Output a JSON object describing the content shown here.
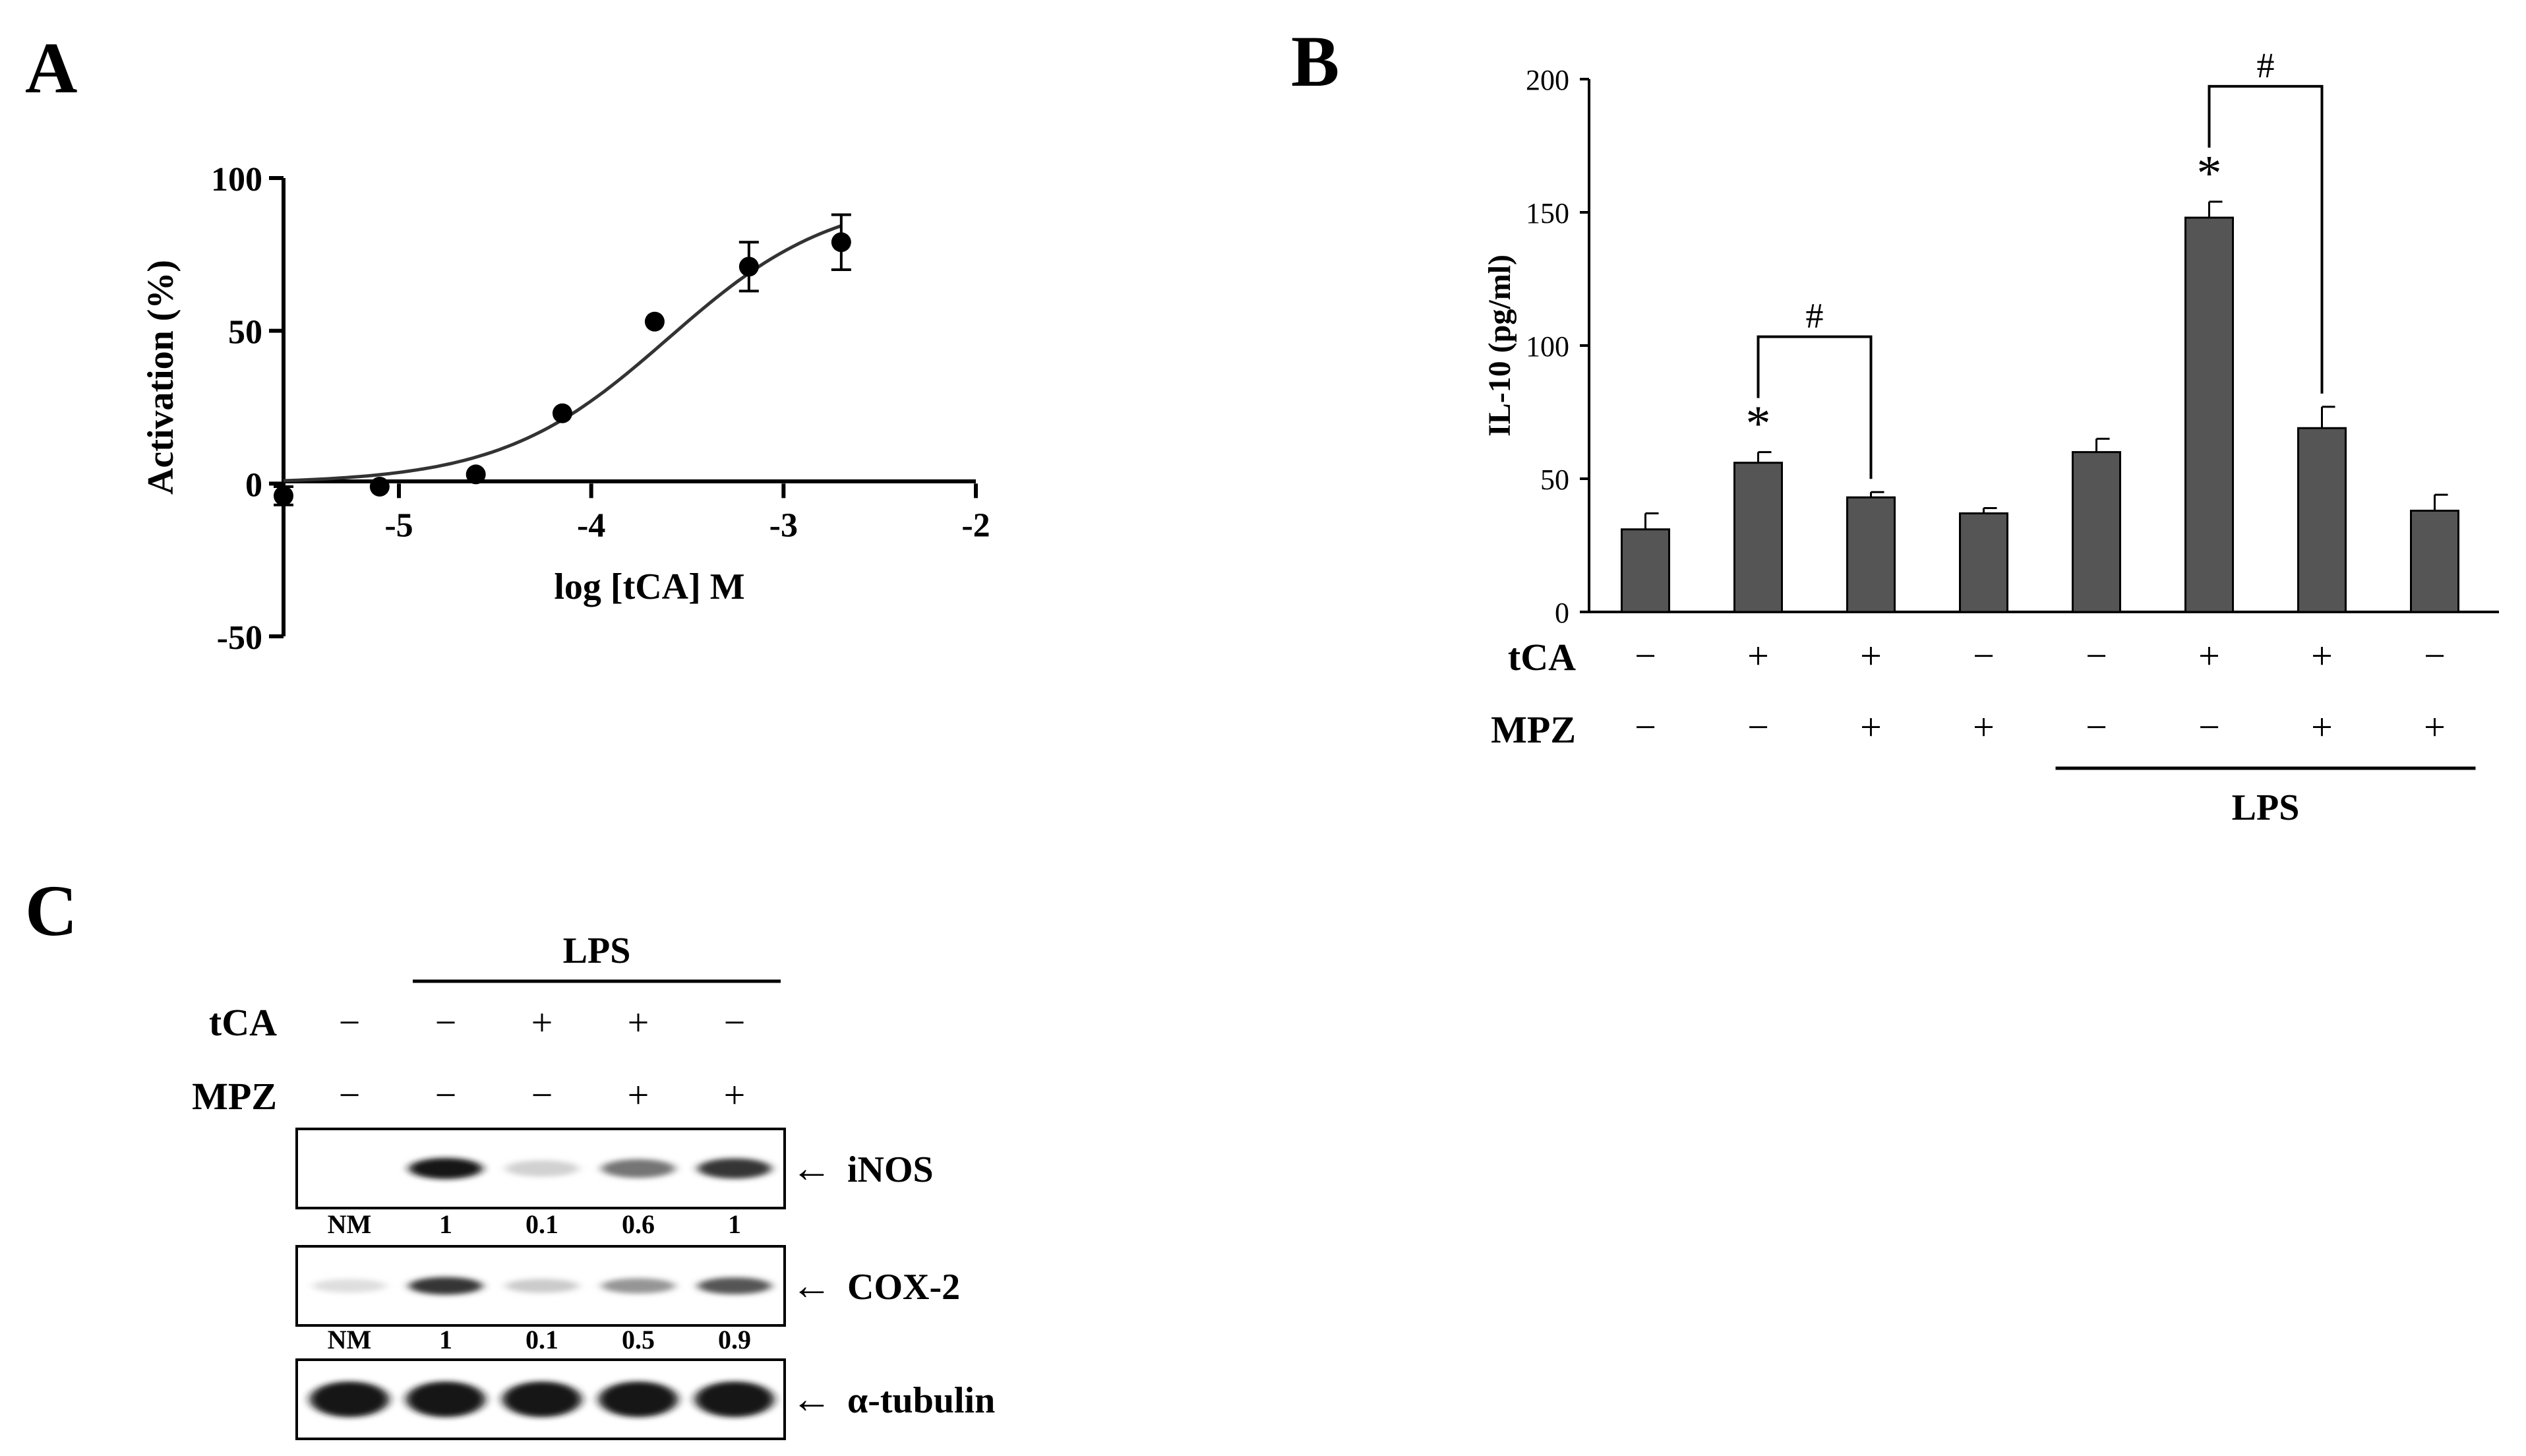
{
  "panels": {
    "a": "A",
    "b": "B",
    "c": "C"
  },
  "symbols": {
    "plus": "+",
    "minus": "−",
    "star": "*",
    "hash": "#"
  },
  "colors": {
    "bar": "#555555",
    "ink": "#000000",
    "band": "#222222",
    "bg": "#ffffff"
  },
  "chart_data": [
    {
      "panel": "A",
      "type": "scatter",
      "title": "",
      "xlabel": "log [tCA] M",
      "ylabel": "Activation (%)",
      "xlim": [
        -5.6,
        -2
      ],
      "ylim": [
        -50,
        100
      ],
      "xticks": [
        -5,
        -4,
        -3,
        -2
      ],
      "xtick_labels": [
        "-5",
        "-4",
        "-3",
        "-2"
      ],
      "yticks": [
        -50,
        0,
        50,
        100
      ],
      "ytick_labels": [
        "-50",
        "0",
        "50",
        "100"
      ],
      "points": [
        {
          "x": -5.6,
          "y": -4,
          "err": 3
        },
        {
          "x": -5.1,
          "y": -1,
          "err": 0
        },
        {
          "x": -4.6,
          "y": 3,
          "err": 0
        },
        {
          "x": -4.15,
          "y": 23,
          "err": 0
        },
        {
          "x": -3.67,
          "y": 53,
          "err": 0
        },
        {
          "x": -3.18,
          "y": 71,
          "err": 8
        },
        {
          "x": -2.7,
          "y": 79,
          "err": 9
        }
      ],
      "fit": {
        "model": "sigmoid",
        "bottom": 0,
        "top": 95,
        "log_ec50": -3.6,
        "hill": 1.0,
        "x_range": [
          -5.6,
          -2.7
        ]
      }
    },
    {
      "panel": "B",
      "type": "bar",
      "title": "",
      "ylabel": "IL-10 (pg/ml)",
      "ylim": [
        0,
        200
      ],
      "yticks": [
        0,
        50,
        100,
        150,
        200
      ],
      "ytick_labels": [
        "0",
        "50",
        "100",
        "150",
        "200"
      ],
      "values": [
        31,
        56,
        43,
        37,
        60,
        148,
        69,
        38
      ],
      "errors": [
        6,
        4,
        2,
        2,
        5,
        6,
        8,
        6
      ],
      "significance_stars": [
        1,
        5
      ],
      "brackets": [
        {
          "from": 1,
          "to": 2,
          "label": "#"
        },
        {
          "from": 5,
          "to": 6,
          "label": "#"
        }
      ],
      "conditions": [
        {
          "name": "tCA",
          "signs": [
            "−",
            "+",
            "+",
            "−",
            "−",
            "+",
            "+",
            "−"
          ]
        },
        {
          "name": "MPZ",
          "signs": [
            "−",
            "−",
            "+",
            "+",
            "−",
            "−",
            "+",
            "+"
          ]
        }
      ],
      "group_label": {
        "text": "LPS",
        "from": 4,
        "to": 7
      }
    },
    {
      "panel": "C",
      "type": "blot",
      "group_label": {
        "text": "LPS",
        "from": 1,
        "to": 4
      },
      "conditions": [
        {
          "name": "tCA",
          "signs": [
            "−",
            "−",
            "+",
            "+",
            "−"
          ]
        },
        {
          "name": "MPZ",
          "signs": [
            "−",
            "−",
            "−",
            "+",
            "+"
          ]
        }
      ],
      "arrow": "←",
      "blots": [
        {
          "name": "iNOS",
          "intensity": [
            0.0,
            1.0,
            0.12,
            0.55,
            0.85
          ],
          "quant": [
            "NM",
            "1",
            "0.1",
            "0.6",
            "1"
          ]
        },
        {
          "name": "COX-2",
          "intensity": [
            0.06,
            0.85,
            0.15,
            0.4,
            0.7
          ],
          "quant": [
            "NM",
            "1",
            "0.1",
            "0.5",
            "0.9"
          ]
        },
        {
          "name": "α-tubulin",
          "intensity": [
            1.0,
            1.0,
            1.0,
            1.0,
            1.0
          ],
          "quant": []
        }
      ]
    }
  ]
}
